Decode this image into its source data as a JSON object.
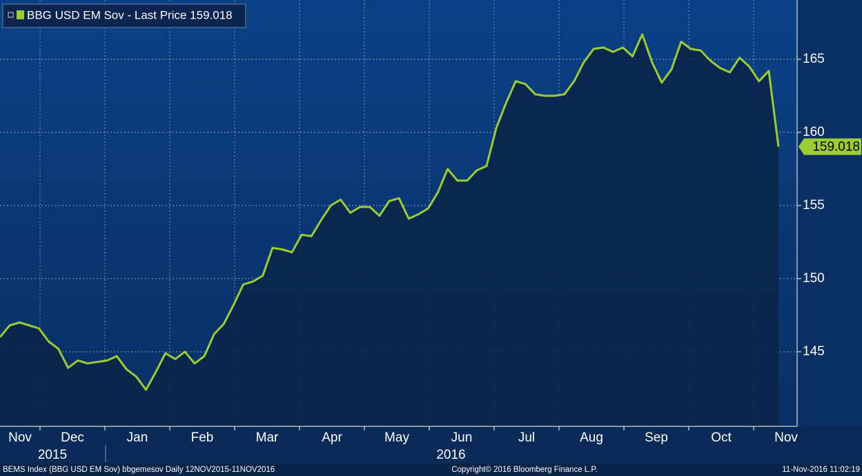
{
  "chart_data": {
    "type": "area",
    "series": [
      {
        "name": "BBG USD EM Sov - Last Price 159.018",
        "color": "#9ccc32",
        "values": [
          146.0,
          146.8,
          147.0,
          146.8,
          146.6,
          145.7,
          145.2,
          143.9,
          144.4,
          144.2,
          144.3,
          144.4,
          144.7,
          143.8,
          143.3,
          142.4,
          143.6,
          144.9,
          144.5,
          145.0,
          144.2,
          144.7,
          146.2,
          146.9,
          148.2,
          149.6,
          149.8,
          150.2,
          152.1,
          152.0,
          151.8,
          153.0,
          152.9,
          154.0,
          155.0,
          155.4,
          154.5,
          154.9,
          154.9,
          154.3,
          155.3,
          155.5,
          154.1,
          154.4,
          154.8,
          155.9,
          157.5,
          156.7,
          156.7,
          157.4,
          157.7,
          160.3,
          162.0,
          163.5,
          163.3,
          162.6,
          162.5,
          162.5,
          162.6,
          163.5,
          164.8,
          165.7,
          165.8,
          165.5,
          165.8,
          165.2,
          166.7,
          164.8,
          163.4,
          164.3,
          166.2,
          165.7,
          165.6,
          164.9,
          164.4,
          164.1,
          165.1,
          164.5,
          163.5,
          164.2,
          159.018
        ],
        "last_value_label": "159.018"
      }
    ],
    "months": [
      "Nov",
      "Dec",
      "Jan",
      "Feb",
      "Mar",
      "Apr",
      "May",
      "Jun",
      "Jul",
      "Aug",
      "Sep",
      "Oct",
      "Nov"
    ],
    "years": [
      "2015",
      "2016"
    ],
    "ylim": [
      139.9,
      169.05
    ],
    "yticks": [
      145,
      150,
      155,
      160,
      165
    ],
    "grid": true,
    "footer": {
      "left": "BEMS Index (BBG USD EM Sov) bbgemesov  Daily 12NOV2015-11NOV2016",
      "center": "Copyright© 2016 Bloomberg Finance L.P.",
      "right": "11-Nov-2016 11:02:19"
    }
  }
}
